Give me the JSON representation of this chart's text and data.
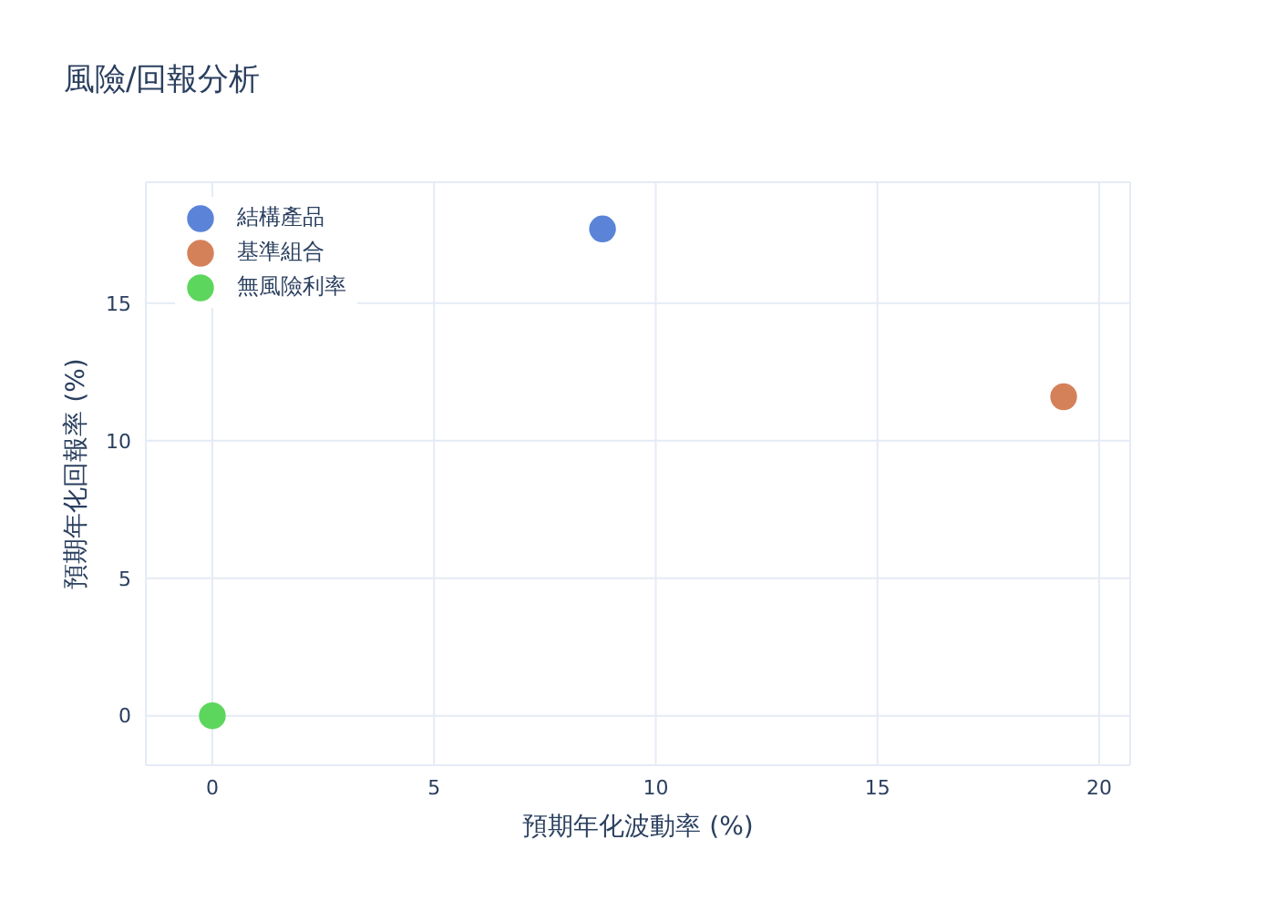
{
  "chart_data": {
    "type": "scatter",
    "title": "風險/回報分析",
    "xlabel": "預期年化波動率 (%)",
    "ylabel": "預期年化回報率 (%)",
    "series": [
      {
        "name": "結構產品",
        "color": "#5b84d8",
        "x": [
          8.8
        ],
        "values": [
          17.7
        ]
      },
      {
        "name": "基準組合",
        "color": "#d4815a",
        "x": [
          19.2
        ],
        "values": [
          11.6
        ]
      },
      {
        "name": "無風險利率",
        "color": "#5cd65c",
        "x": [
          0
        ],
        "values": [
          0
        ]
      }
    ],
    "xlim": [
      -1.5,
      20.7
    ],
    "ylim": [
      -1.8,
      19.4
    ],
    "xticks": [
      0,
      5,
      10,
      15,
      20
    ],
    "yticks": [
      0,
      5,
      10,
      15
    ],
    "grid": true,
    "legend": "top left",
    "marker": "circle"
  }
}
